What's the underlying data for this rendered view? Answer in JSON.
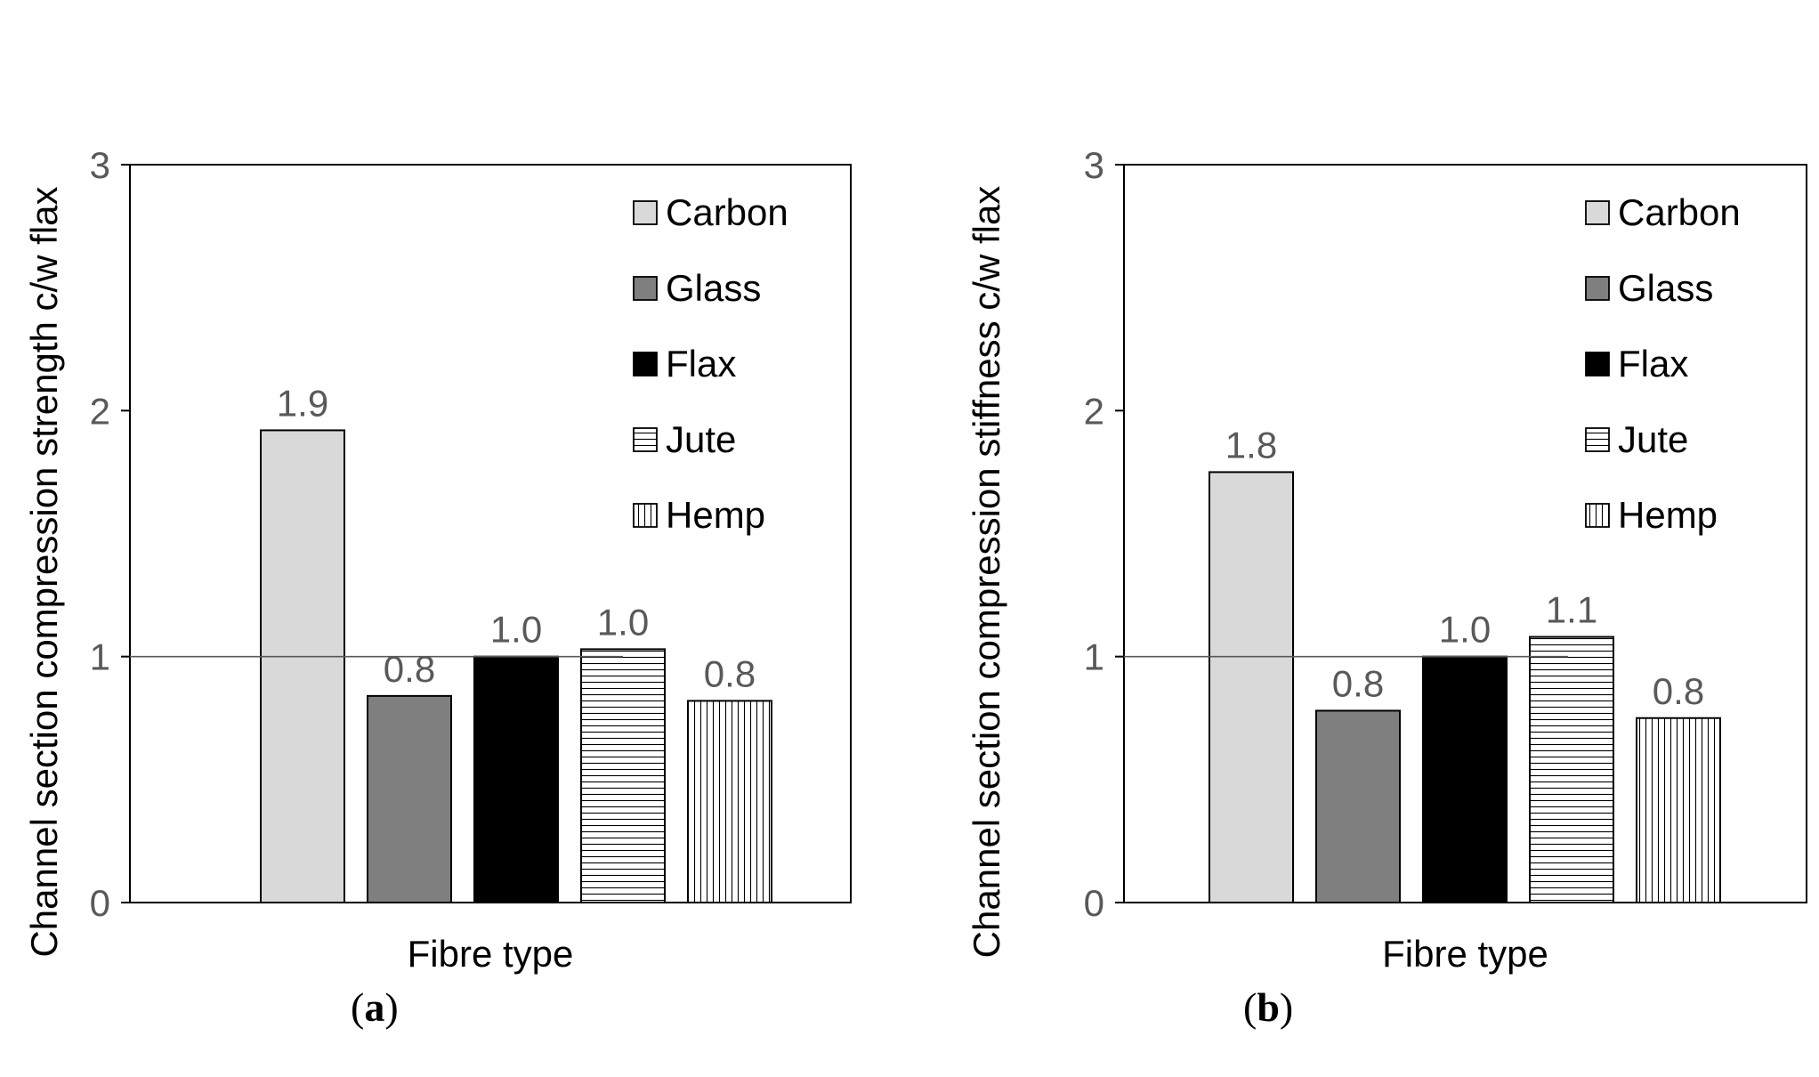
{
  "chart_data": [
    {
      "type": "bar",
      "panel_label": "a",
      "xlabel": "Fibre type",
      "ylabel": "Channel section compression strength c/w flax",
      "ylim": [
        0,
        3
      ],
      "yticks": [
        "0",
        "1",
        "2",
        "3"
      ],
      "reference_line": 1,
      "categories": [
        "Carbon",
        "Glass",
        "Flax",
        "Jute",
        "Hemp"
      ],
      "values": [
        1.92,
        0.84,
        1.0,
        1.03,
        0.82
      ],
      "data_labels": [
        "1.9",
        "0.8",
        "1.0",
        "1.0",
        "0.8"
      ],
      "legend": [
        "Carbon",
        "Glass",
        "Flax",
        "Jute",
        "Hemp"
      ],
      "legend_position": "top-right"
    },
    {
      "type": "bar",
      "panel_label": "b",
      "xlabel": "Fibre type",
      "ylabel": "Channel section compression stiffness c/w flax",
      "ylim": [
        0,
        3
      ],
      "yticks": [
        "0",
        "1",
        "2",
        "3"
      ],
      "reference_line": 1,
      "categories": [
        "Carbon",
        "Glass",
        "Flax",
        "Jute",
        "Hemp"
      ],
      "values": [
        1.75,
        0.78,
        1.0,
        1.08,
        0.75
      ],
      "data_labels": [
        "1.8",
        "0.8",
        "1.0",
        "1.1",
        "0.8"
      ],
      "legend": [
        "Carbon",
        "Glass",
        "Flax",
        "Jute",
        "Hemp"
      ],
      "legend_position": "top-right"
    }
  ],
  "captions": {
    "a": {
      "open": "(",
      "letter": "a",
      "close": ")"
    },
    "b": {
      "open": "(",
      "letter": "b",
      "close": ")"
    }
  },
  "series_styles": {
    "Carbon": {
      "fill": "#d9d9d9",
      "pattern": "none"
    },
    "Glass": {
      "fill": "#7f7f7f",
      "pattern": "none"
    },
    "Flax": {
      "fill": "#000000",
      "pattern": "none"
    },
    "Jute": {
      "fill": "#ffffff",
      "pattern": "horizontal-lines"
    },
    "Hemp": {
      "fill": "#ffffff",
      "pattern": "vertical-lines"
    }
  }
}
